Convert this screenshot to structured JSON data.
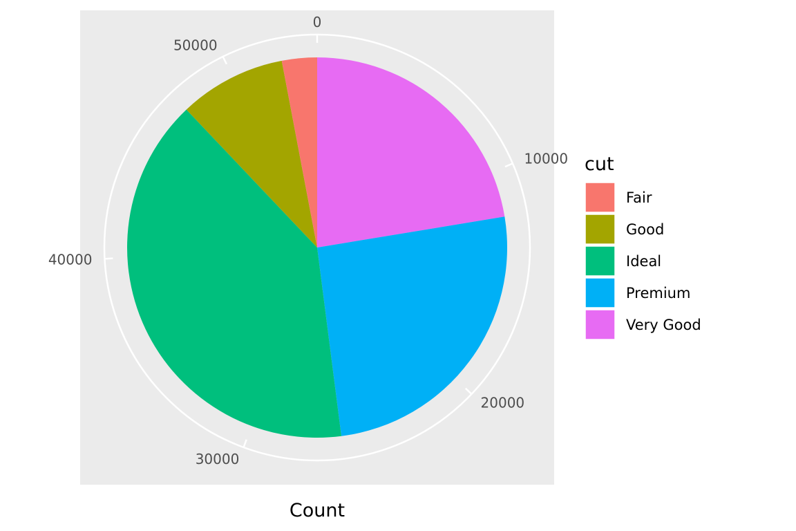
{
  "chart_data": {
    "type": "pie",
    "xlabel": "Count",
    "ylabel": "",
    "legend_title": "cut",
    "legend_position": "right",
    "grid": true,
    "axis_ticks": [
      0,
      10000,
      20000,
      30000,
      40000,
      50000
    ],
    "axis_ticks_labels": [
      "0",
      "10000",
      "20000",
      "30000",
      "40000",
      "50000"
    ],
    "axis_max": 53940,
    "categories": [
      "Fair",
      "Good",
      "Ideal",
      "Premium",
      "Very Good"
    ],
    "stack_order": [
      "Very Good",
      "Premium",
      "Ideal",
      "Good",
      "Fair"
    ],
    "values": [
      1610,
      4906,
      21551,
      13791,
      12082
    ],
    "colors": [
      "#F8766D",
      "#A3A500",
      "#00BF7D",
      "#00B0F6",
      "#E76BF3"
    ],
    "panel_background": "#EBEBEB",
    "grid_color": "#FFFFFF"
  }
}
